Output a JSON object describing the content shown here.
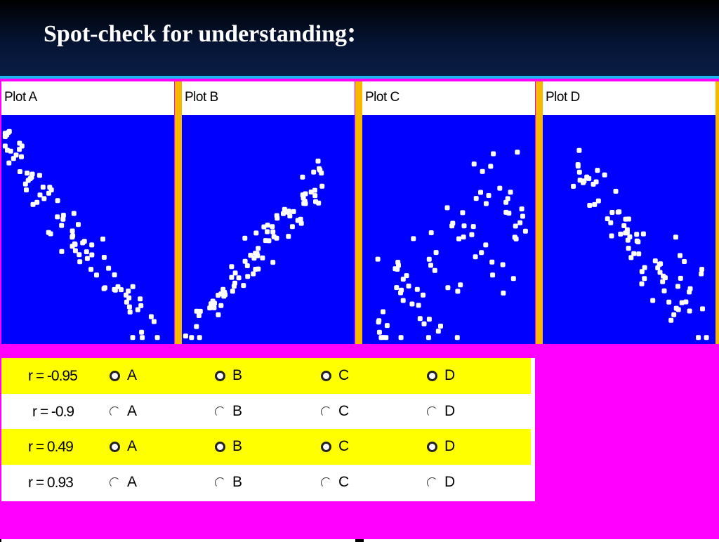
{
  "slide": {
    "title": "Spot-check for understanding",
    "title_colon": ":"
  },
  "plots": [
    {
      "label": "Plot A"
    },
    {
      "label": "Plot B"
    },
    {
      "label": "Plot C"
    },
    {
      "label": "Plot D"
    }
  ],
  "chart_data": [
    {
      "type": "scatter",
      "title": "Plot A",
      "trend": "strong negative"
    },
    {
      "type": "scatter",
      "title": "Plot B",
      "trend": "strong positive"
    },
    {
      "type": "scatter",
      "title": "Plot C",
      "trend": "weak positive"
    },
    {
      "type": "scatter",
      "title": "Plot D",
      "trend": "moderate negative"
    }
  ],
  "question_rows": [
    {
      "label": "r = -0.95",
      "highlight": true,
      "radio_style": "bold"
    },
    {
      "label": "r = -0.9",
      "highlight": false,
      "radio_style": "thin"
    },
    {
      "label": "r = 0.49",
      "highlight": true,
      "radio_style": "bold"
    },
    {
      "label": "r = 0.93",
      "highlight": false,
      "radio_style": "thin"
    }
  ],
  "choices": [
    "A",
    "B",
    "C",
    "D"
  ],
  "colors": {
    "plot_bg": "#0000ff",
    "dot": "#ffffff",
    "separator": "#f7b800",
    "highlight_row": "#ffff00",
    "app_bg": "#ff00ff",
    "border_accent": "#1ab8ef"
  }
}
